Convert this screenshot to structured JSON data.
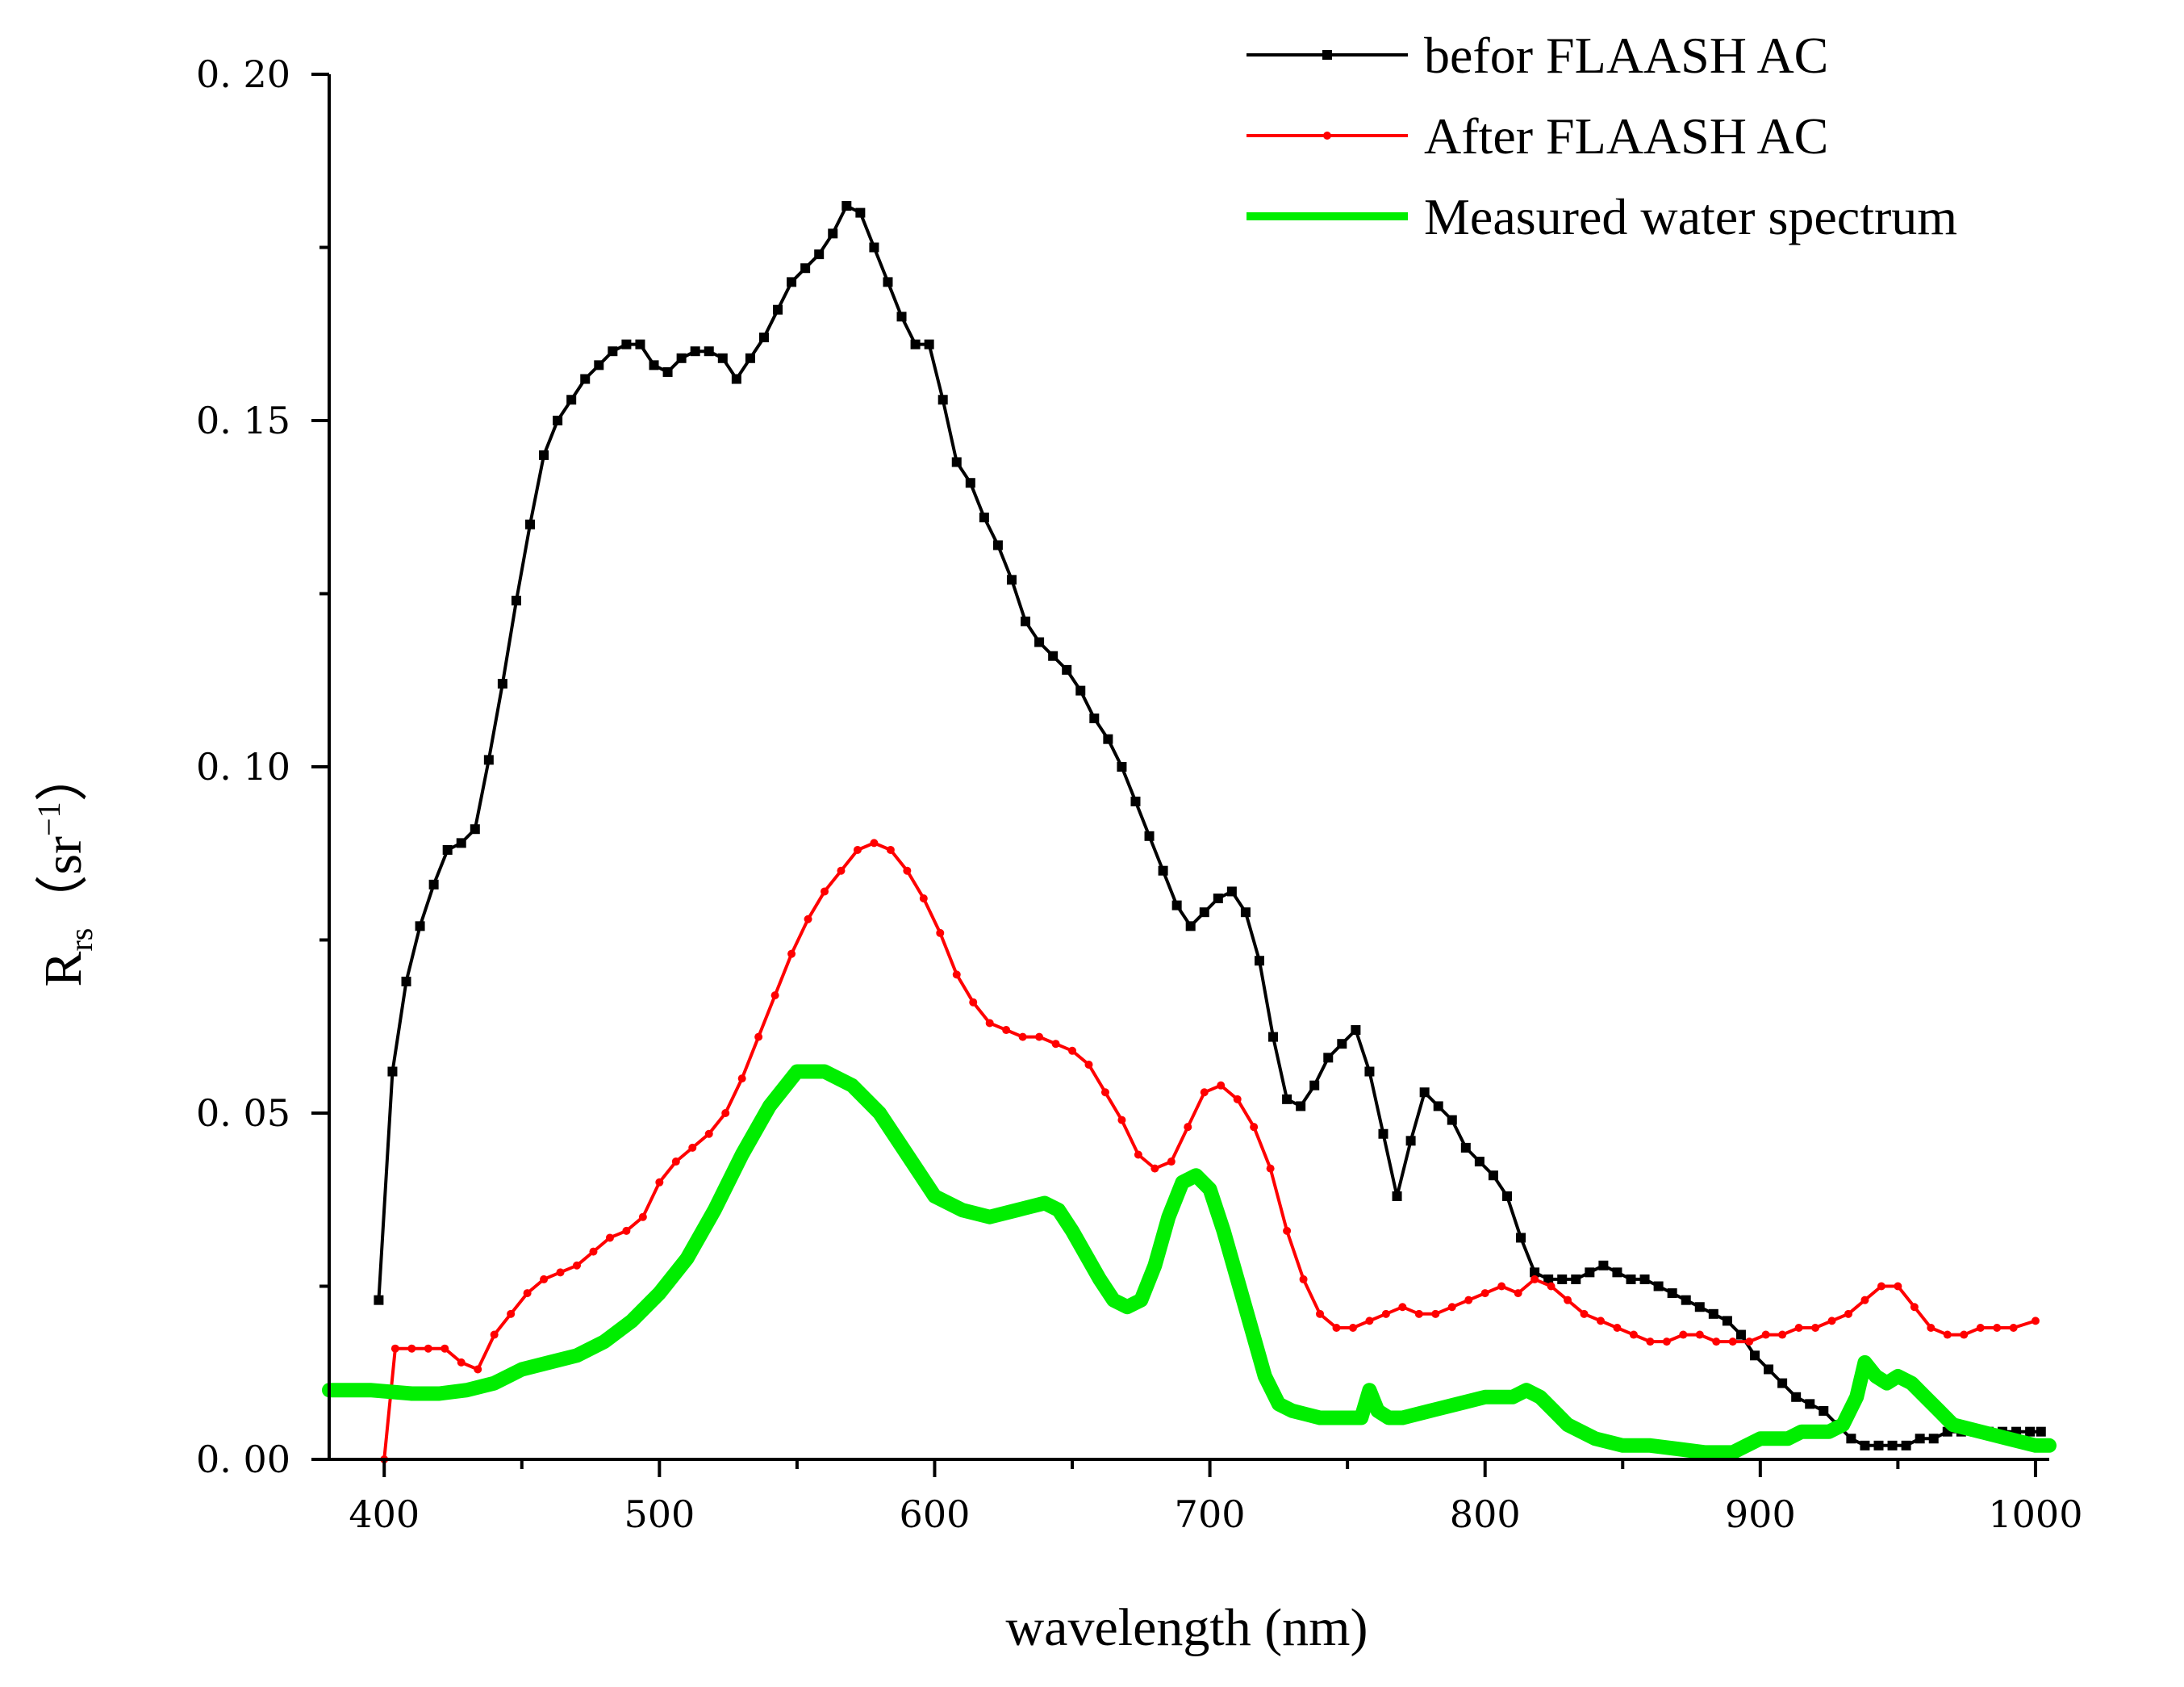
{
  "chart_data": {
    "type": "line",
    "title": "",
    "xlabel": "wavelength (nm)",
    "ylabel": {
      "main": "R",
      "subscript": "rs",
      "unit_open": "（sr",
      "superscript": "−1",
      "unit_close": "）"
    },
    "xlim": [
      380,
      1005
    ],
    "ylim": [
      0,
      0.2
    ],
    "xticks": [
      400,
      500,
      600,
      700,
      800,
      900,
      1000
    ],
    "xtick_labels": [
      "400",
      "500",
      "600",
      "700",
      "800",
      "900",
      "1000"
    ],
    "yticks": [
      0,
      0.05,
      0.1,
      0.15,
      0.2
    ],
    "ytick_labels": [
      "0. 00",
      "0. 05",
      "0. 10",
      "0. 15",
      "0. 20"
    ],
    "legend_position": "top-right",
    "series": [
      {
        "name": "befor FLAASH AC",
        "color": "#000000",
        "marker": "square",
        "x": [
          398,
          403,
          408,
          413,
          418,
          423,
          428,
          433,
          438,
          443,
          448,
          453,
          458,
          463,
          468,
          473,
          478,
          483,
          488,
          493,
          498,
          503,
          508,
          513,
          518,
          523,
          528,
          533,
          538,
          543,
          548,
          553,
          558,
          563,
          568,
          573,
          578,
          583,
          588,
          593,
          598,
          603,
          608,
          613,
          618,
          623,
          628,
          633,
          638,
          643,
          648,
          653,
          658,
          663,
          668,
          673,
          678,
          683,
          688,
          693,
          698,
          703,
          708,
          713,
          718,
          723,
          728,
          733,
          738,
          743,
          748,
          753,
          758,
          763,
          768,
          773,
          778,
          783,
          788,
          793,
          798,
          803,
          808,
          813,
          818,
          823,
          828,
          833,
          838,
          843,
          848,
          853,
          858,
          863,
          868,
          873,
          878,
          883,
          888,
          893,
          898,
          903,
          908,
          913,
          918,
          923,
          928,
          933,
          938,
          943,
          948,
          953,
          958,
          963,
          968,
          973,
          978,
          983,
          988,
          993,
          998,
          1002
        ],
        "y": [
          0.023,
          0.056,
          0.069,
          0.077,
          0.083,
          0.088,
          0.089,
          0.091,
          0.101,
          0.112,
          0.124,
          0.135,
          0.145,
          0.15,
          0.153,
          0.156,
          0.158,
          0.16,
          0.161,
          0.161,
          0.158,
          0.157,
          0.159,
          0.16,
          0.16,
          0.159,
          0.156,
          0.159,
          0.162,
          0.166,
          0.17,
          0.172,
          0.174,
          0.177,
          0.181,
          0.18,
          0.175,
          0.17,
          0.165,
          0.161,
          0.161,
          0.153,
          0.144,
          0.141,
          0.136,
          0.132,
          0.127,
          0.121,
          0.118,
          0.116,
          0.114,
          0.111,
          0.107,
          0.104,
          0.1,
          0.095,
          0.09,
          0.085,
          0.08,
          0.077,
          0.079,
          0.081,
          0.082,
          0.079,
          0.072,
          0.061,
          0.052,
          0.051,
          0.054,
          0.058,
          0.06,
          0.062,
          0.056,
          0.047,
          0.038,
          0.046,
          0.053,
          0.051,
          0.049,
          0.045,
          0.043,
          0.041,
          0.038,
          0.032,
          0.027,
          0.026,
          0.026,
          0.026,
          0.027,
          0.028,
          0.027,
          0.026,
          0.026,
          0.025,
          0.024,
          0.023,
          0.022,
          0.021,
          0.02,
          0.018,
          0.015,
          0.013,
          0.011,
          0.009,
          0.008,
          0.007,
          0.005,
          0.003,
          0.002,
          0.002,
          0.002,
          0.002,
          0.003,
          0.003,
          0.004,
          0.004,
          0.004,
          0.004,
          0.004,
          0.004,
          0.004,
          0.004
        ]
      },
      {
        "name": "After FLAASH AC",
        "color": "#ff0000",
        "marker": "dot",
        "x": [
          400,
          404,
          410,
          416,
          422,
          428,
          434,
          440,
          446,
          452,
          458,
          464,
          470,
          476,
          482,
          488,
          494,
          500,
          506,
          512,
          518,
          524,
          530,
          536,
          542,
          548,
          554,
          560,
          566,
          572,
          578,
          584,
          590,
          596,
          602,
          608,
          614,
          620,
          626,
          632,
          638,
          644,
          650,
          656,
          662,
          668,
          674,
          680,
          686,
          692,
          698,
          704,
          710,
          716,
          722,
          728,
          734,
          740,
          746,
          752,
          758,
          764,
          770,
          776,
          782,
          788,
          794,
          800,
          806,
          812,
          818,
          824,
          830,
          836,
          842,
          848,
          854,
          860,
          866,
          872,
          878,
          884,
          890,
          896,
          902,
          908,
          914,
          920,
          926,
          932,
          938,
          944,
          950,
          956,
          962,
          968,
          974,
          980,
          986,
          992,
          1000
        ],
        "y": [
          0.0,
          0.016,
          0.016,
          0.016,
          0.016,
          0.014,
          0.013,
          0.018,
          0.021,
          0.024,
          0.026,
          0.027,
          0.028,
          0.03,
          0.032,
          0.033,
          0.035,
          0.04,
          0.043,
          0.045,
          0.047,
          0.05,
          0.055,
          0.061,
          0.067,
          0.073,
          0.078,
          0.082,
          0.085,
          0.088,
          0.089,
          0.088,
          0.085,
          0.081,
          0.076,
          0.07,
          0.066,
          0.063,
          0.062,
          0.061,
          0.061,
          0.06,
          0.059,
          0.057,
          0.053,
          0.049,
          0.044,
          0.042,
          0.043,
          0.048,
          0.053,
          0.054,
          0.052,
          0.048,
          0.042,
          0.033,
          0.026,
          0.021,
          0.019,
          0.019,
          0.02,
          0.021,
          0.022,
          0.021,
          0.021,
          0.022,
          0.023,
          0.024,
          0.025,
          0.024,
          0.026,
          0.025,
          0.023,
          0.021,
          0.02,
          0.019,
          0.018,
          0.017,
          0.017,
          0.018,
          0.018,
          0.017,
          0.017,
          0.017,
          0.018,
          0.018,
          0.019,
          0.019,
          0.02,
          0.021,
          0.023,
          0.025,
          0.025,
          0.022,
          0.019,
          0.018,
          0.018,
          0.019,
          0.019,
          0.019,
          0.02
        ]
      },
      {
        "name": "Measured water spectrum",
        "color": "#00ee00",
        "marker": "none",
        "x": [
          380,
          395,
          410,
          420,
          430,
          440,
          450,
          460,
          470,
          480,
          490,
          500,
          510,
          520,
          530,
          540,
          550,
          560,
          570,
          580,
          590,
          600,
          610,
          620,
          630,
          640,
          645,
          650,
          660,
          665,
          670,
          675,
          680,
          685,
          690,
          695,
          700,
          705,
          710,
          715,
          720,
          725,
          730,
          735,
          740,
          745,
          750,
          755,
          758,
          761,
          765,
          770,
          780,
          790,
          800,
          810,
          815,
          820,
          825,
          830,
          840,
          850,
          860,
          870,
          880,
          885,
          890,
          895,
          900,
          905,
          910,
          915,
          920,
          925,
          930,
          935,
          938,
          942,
          946,
          950,
          955,
          960,
          965,
          970,
          980,
          990,
          1000,
          1005
        ],
        "y": [
          0.01,
          0.01,
          0.0095,
          0.0095,
          0.01,
          0.011,
          0.013,
          0.014,
          0.015,
          0.017,
          0.02,
          0.024,
          0.029,
          0.036,
          0.044,
          0.051,
          0.056,
          0.056,
          0.054,
          0.05,
          0.044,
          0.038,
          0.036,
          0.035,
          0.036,
          0.037,
          0.036,
          0.033,
          0.026,
          0.023,
          0.022,
          0.023,
          0.028,
          0.035,
          0.04,
          0.041,
          0.039,
          0.033,
          0.026,
          0.019,
          0.012,
          0.008,
          0.007,
          0.0065,
          0.006,
          0.006,
          0.006,
          0.006,
          0.01,
          0.007,
          0.006,
          0.006,
          0.007,
          0.008,
          0.009,
          0.009,
          0.01,
          0.009,
          0.007,
          0.005,
          0.003,
          0.002,
          0.002,
          0.0015,
          0.001,
          0.001,
          0.001,
          0.002,
          0.003,
          0.003,
          0.003,
          0.004,
          0.004,
          0.004,
          0.005,
          0.009,
          0.014,
          0.012,
          0.011,
          0.012,
          0.011,
          0.009,
          0.007,
          0.005,
          0.004,
          0.003,
          0.002,
          0.002
        ]
      }
    ]
  }
}
